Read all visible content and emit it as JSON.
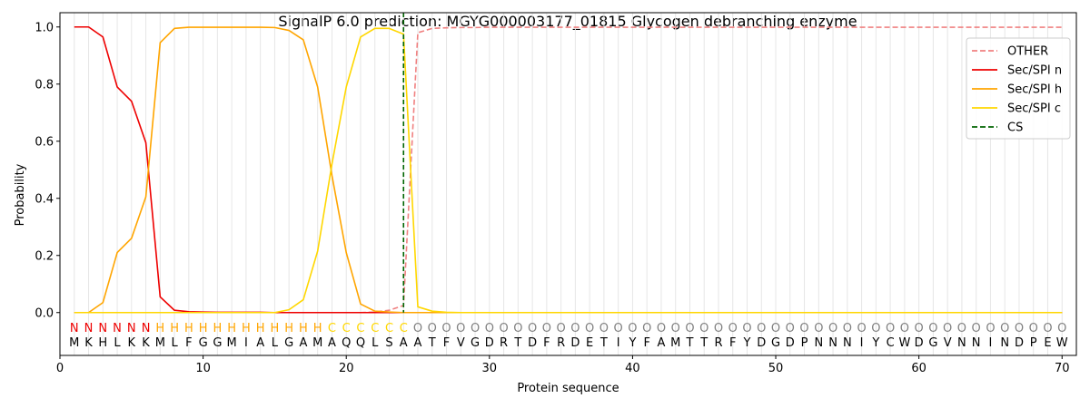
{
  "chart_data": {
    "type": "line",
    "title": "SignalP 6.0 prediction: MGYG000003177_01815 Glycogen debranching enzyme",
    "xlabel": "Protein sequence",
    "ylabel": "Probability",
    "xlim": [
      0,
      71
    ],
    "ylim": [
      -0.15,
      1.05
    ],
    "x_ticks": [
      0,
      10,
      20,
      30,
      40,
      50,
      60,
      70
    ],
    "y_ticks": [
      0.0,
      0.2,
      0.4,
      0.6,
      0.8,
      1.0
    ],
    "x_tick_labels": [
      "0",
      "10",
      "20",
      "30",
      "40",
      "50",
      "60",
      "70"
    ],
    "y_tick_labels": [
      "0.0",
      "0.2",
      "0.4",
      "0.6",
      "0.8",
      "1.0"
    ],
    "grid": "vertical lines at each residue",
    "legend_position": "top-right",
    "sequence": [
      "M",
      "K",
      "H",
      "L",
      "K",
      "K",
      "M",
      "L",
      "F",
      "G",
      "G",
      "M",
      "I",
      "A",
      "L",
      "G",
      "A",
      "M",
      "A",
      "Q",
      "Q",
      "L",
      "S",
      "A",
      "A",
      "T",
      "F",
      "V",
      "G",
      "D",
      "R",
      "T",
      "D",
      "F",
      "R",
      "D",
      "E",
      "T",
      "I",
      "Y",
      "F",
      "A",
      "M",
      "T",
      "T",
      "R",
      "F",
      "Y",
      "D",
      "G",
      "D",
      "P",
      "N",
      "N",
      "N",
      "I",
      "Y",
      "C",
      "W",
      "D",
      "G",
      "V",
      "N",
      "N",
      "I",
      "N",
      "D",
      "P",
      "E",
      "W"
    ],
    "region_labels": [
      "N",
      "N",
      "N",
      "N",
      "N",
      "N",
      "H",
      "H",
      "H",
      "H",
      "H",
      "H",
      "H",
      "H",
      "H",
      "H",
      "H",
      "H",
      "C",
      "C",
      "C",
      "C",
      "C",
      "C",
      "O",
      "O",
      "O",
      "O",
      "O",
      "O",
      "O",
      "O",
      "O",
      "O",
      "O",
      "O",
      "O",
      "O",
      "O",
      "O",
      "O",
      "O",
      "O",
      "O",
      "O",
      "O",
      "O",
      "O",
      "O",
      "O",
      "O",
      "O",
      "O",
      "O",
      "O",
      "O",
      "O",
      "O",
      "O",
      "O",
      "O",
      "O",
      "O",
      "O",
      "O",
      "O",
      "O",
      "O",
      "O",
      "O"
    ],
    "region_colors": {
      "N": "#ee0000",
      "H": "#ffa500",
      "C": "#ffd700",
      "O": "#808080"
    },
    "cleavage_site": 24,
    "series": [
      {
        "name": "OTHER",
        "color": "#f08080",
        "dash": "dashed",
        "values": [
          0.0,
          0.0,
          0.0,
          0.0,
          0.0,
          0.0,
          0.0,
          0.0,
          0.0,
          0.0,
          0.0,
          0.0,
          0.0,
          0.0,
          0.0,
          0.0,
          0.0,
          0.0,
          0.0,
          0.0,
          0.0,
          0.002,
          0.008,
          0.025,
          0.98,
          0.995,
          0.997,
          0.998,
          0.998,
          0.999,
          0.999,
          0.999,
          0.999,
          0.999,
          0.999,
          0.999,
          0.999,
          0.999,
          0.999,
          0.999,
          0.999,
          0.999,
          0.999,
          0.999,
          0.999,
          0.999,
          0.999,
          0.999,
          0.999,
          0.999,
          0.999,
          0.999,
          0.999,
          0.999,
          0.999,
          0.999,
          0.999,
          0.999,
          0.999,
          0.999,
          0.999,
          0.999,
          0.999,
          0.999,
          0.999,
          0.999,
          0.999,
          0.999,
          0.999,
          0.999
        ]
      },
      {
        "name": "Sec/SPI n",
        "color": "#ee0000",
        "dash": "solid",
        "values": [
          1.0,
          1.0,
          0.965,
          0.79,
          0.74,
          0.595,
          0.055,
          0.008,
          0.003,
          0.002,
          0.001,
          0.001,
          0.001,
          0.001,
          0.0,
          0.0,
          0.0,
          0.0,
          0.0,
          0.0,
          0.0,
          0.0,
          0.0,
          0.0,
          0.0,
          0.0,
          0.0,
          0.0,
          0.0,
          0.0,
          0.0,
          0.0,
          0.0,
          0.0,
          0.0,
          0.0,
          0.0,
          0.0,
          0.0,
          0.0,
          0.0,
          0.0,
          0.0,
          0.0,
          0.0,
          0.0,
          0.0,
          0.0,
          0.0,
          0.0,
          0.0,
          0.0,
          0.0,
          0.0,
          0.0,
          0.0,
          0.0,
          0.0,
          0.0,
          0.0,
          0.0,
          0.0,
          0.0,
          0.0,
          0.0,
          0.0,
          0.0,
          0.0,
          0.0,
          0.0
        ]
      },
      {
        "name": "Sec/SPI h",
        "color": "#ffa500",
        "dash": "solid",
        "values": [
          0.0,
          0.0,
          0.035,
          0.21,
          0.26,
          0.405,
          0.945,
          0.995,
          0.999,
          0.999,
          0.999,
          0.999,
          0.999,
          0.999,
          0.998,
          0.988,
          0.955,
          0.79,
          0.48,
          0.21,
          0.03,
          0.005,
          0.002,
          0.0,
          0.0,
          0.0,
          0.0,
          0.0,
          0.0,
          0.0,
          0.0,
          0.0,
          0.0,
          0.0,
          0.0,
          0.0,
          0.0,
          0.0,
          0.0,
          0.0,
          0.0,
          0.0,
          0.0,
          0.0,
          0.0,
          0.0,
          0.0,
          0.0,
          0.0,
          0.0,
          0.0,
          0.0,
          0.0,
          0.0,
          0.0,
          0.0,
          0.0,
          0.0,
          0.0,
          0.0,
          0.0,
          0.0,
          0.0,
          0.0,
          0.0,
          0.0,
          0.0,
          0.0,
          0.0,
          0.0
        ]
      },
      {
        "name": "Sec/SPI c",
        "color": "#ffd700",
        "dash": "solid",
        "values": [
          0.0,
          0.0,
          0.0,
          0.0,
          0.0,
          0.0,
          0.0,
          0.0,
          0.0,
          0.0,
          0.0,
          0.0,
          0.0,
          0.0,
          0.0,
          0.01,
          0.045,
          0.215,
          0.52,
          0.79,
          0.965,
          0.995,
          0.995,
          0.975,
          0.02,
          0.005,
          0.001,
          0.0,
          0.0,
          0.0,
          0.0,
          0.0,
          0.0,
          0.0,
          0.0,
          0.0,
          0.0,
          0.0,
          0.0,
          0.0,
          0.0,
          0.0,
          0.0,
          0.0,
          0.0,
          0.0,
          0.0,
          0.0,
          0.0,
          0.0,
          0.0,
          0.0,
          0.0,
          0.0,
          0.0,
          0.0,
          0.0,
          0.0,
          0.0,
          0.0,
          0.0,
          0.0,
          0.0,
          0.0,
          0.0,
          0.0,
          0.0,
          0.0,
          0.0,
          0.0
        ]
      }
    ],
    "legend": [
      {
        "label": "OTHER",
        "color": "#f08080",
        "dash": "dashed"
      },
      {
        "label": "Sec/SPI n",
        "color": "#ee0000",
        "dash": "solid"
      },
      {
        "label": "Sec/SPI h",
        "color": "#ffa500",
        "dash": "solid"
      },
      {
        "label": "Sec/SPI c",
        "color": "#ffd700",
        "dash": "solid"
      },
      {
        "label": "CS",
        "color": "#006400",
        "dash": "dashed"
      }
    ]
  }
}
